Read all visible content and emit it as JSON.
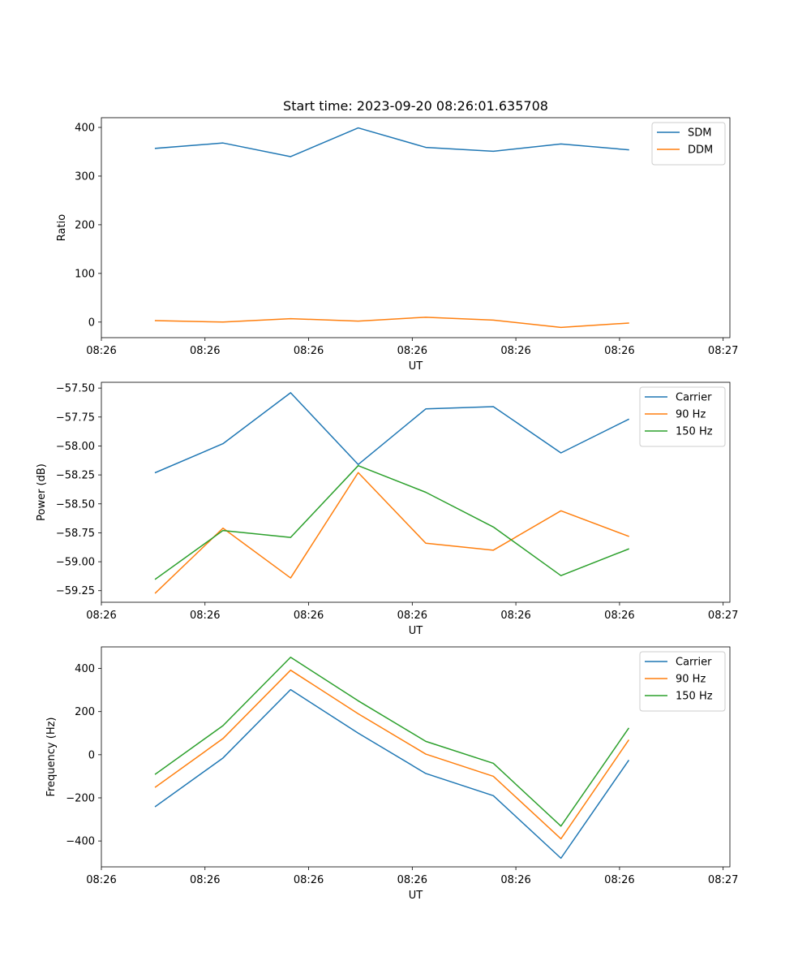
{
  "figure_title": "Start time: 2023-09-20 08:26:01.635708",
  "chart_data": [
    {
      "type": "line",
      "ylabel": "Ratio",
      "xlabel": "UT",
      "x": [
        1,
        2,
        3,
        4,
        5,
        6,
        7,
        8
      ],
      "xlim": [
        0.2,
        9.5
      ],
      "xticks": [
        0.2,
        1.733,
        3.267,
        4.8,
        6.333,
        7.867,
        9.4
      ],
      "xtick_labels": [
        "08:26",
        "08:26",
        "08:26",
        "08:26",
        "08:26",
        "08:26",
        "08:27"
      ],
      "ylim": [
        -32,
        420
      ],
      "yticks": [
        0,
        100,
        200,
        300,
        400
      ],
      "ytick_labels": [
        "0",
        "100",
        "200",
        "300",
        "400"
      ],
      "legend_position": "top-right",
      "series": [
        {
          "name": "SDM",
          "color": "#1f77b4",
          "values": [
            357,
            368,
            340,
            399,
            359,
            351,
            366,
            354
          ]
        },
        {
          "name": "DDM",
          "color": "#ff7f0e",
          "values": [
            3,
            0,
            7,
            2,
            10,
            4,
            -11,
            -2
          ]
        }
      ]
    },
    {
      "type": "line",
      "ylabel": "Power (dB)",
      "xlabel": "UT",
      "x": [
        1,
        2,
        3,
        4,
        5,
        6,
        7,
        8
      ],
      "xlim": [
        0.2,
        9.5
      ],
      "xticks": [
        0.2,
        1.733,
        3.267,
        4.8,
        6.333,
        7.867,
        9.4
      ],
      "xtick_labels": [
        "08:26",
        "08:26",
        "08:26",
        "08:26",
        "08:26",
        "08:26",
        "08:27"
      ],
      "ylim": [
        -59.35,
        -57.45
      ],
      "yticks": [
        -57.5,
        -57.75,
        -58.0,
        -58.25,
        -58.5,
        -58.75,
        -59.0,
        -59.25
      ],
      "ytick_labels": [
        "−57.50",
        "−57.75",
        "−58.00",
        "−58.25",
        "−58.50",
        "−58.75",
        "−59.00",
        "−59.25"
      ],
      "legend_position": "top-right",
      "series": [
        {
          "name": "Carrier",
          "color": "#1f77b4",
          "values": [
            -58.23,
            -57.98,
            -57.54,
            -58.16,
            -57.68,
            -57.66,
            -58.06,
            -57.77
          ]
        },
        {
          "name": "90 Hz",
          "color": "#ff7f0e",
          "values": [
            -59.27,
            -58.71,
            -59.14,
            -58.23,
            -58.84,
            -58.9,
            -58.56,
            -58.78
          ]
        },
        {
          "name": "150 Hz",
          "color": "#2ca02c",
          "values": [
            -59.15,
            -58.73,
            -58.79,
            -58.17,
            -58.4,
            -58.7,
            -59.12,
            -58.89
          ]
        }
      ]
    },
    {
      "type": "line",
      "ylabel": "Frequency (Hz)",
      "xlabel": "UT",
      "x": [
        1,
        2,
        3,
        4,
        5,
        6,
        7,
        8
      ],
      "xlim": [
        0.2,
        9.5
      ],
      "xticks": [
        0.2,
        1.733,
        3.267,
        4.8,
        6.333,
        7.867,
        9.4
      ],
      "xtick_labels": [
        "08:26",
        "08:26",
        "08:26",
        "08:26",
        "08:26",
        "08:26",
        "08:27"
      ],
      "ylim": [
        -520,
        500
      ],
      "yticks": [
        -400,
        -200,
        0,
        200,
        400
      ],
      "ytick_labels": [
        "−400",
        "−200",
        "0",
        "200",
        "400"
      ],
      "legend_position": "top-right",
      "series": [
        {
          "name": "Carrier",
          "color": "#1f77b4",
          "values": [
            -240,
            -15,
            302,
            100,
            -87,
            -190,
            -480,
            -27
          ]
        },
        {
          "name": "90 Hz",
          "color": "#ff7f0e",
          "values": [
            -150,
            75,
            392,
            190,
            3,
            -100,
            -390,
            67
          ]
        },
        {
          "name": "150 Hz",
          "color": "#2ca02c",
          "values": [
            -90,
            135,
            452,
            250,
            62,
            -40,
            -331,
            122
          ]
        }
      ]
    }
  ]
}
